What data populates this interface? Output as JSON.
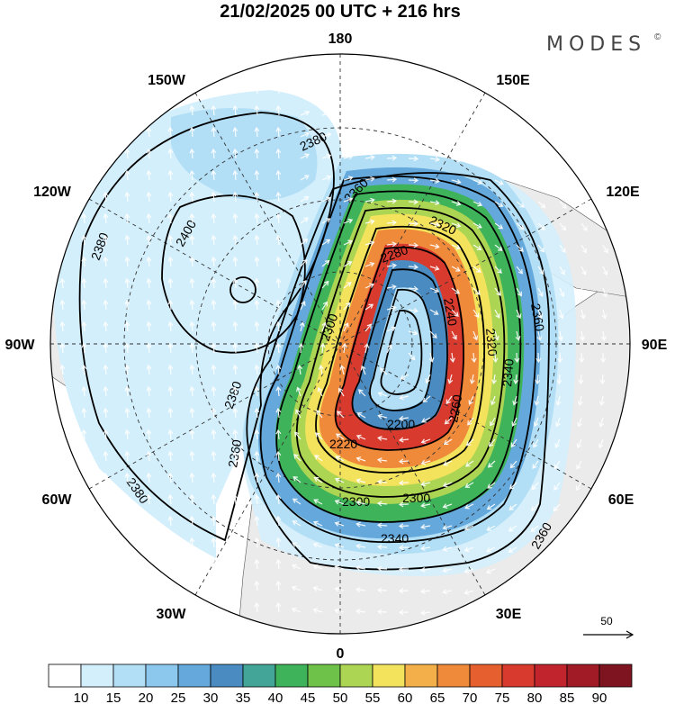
{
  "title": "21/02/2025  00 UTC  + 216 hrs",
  "brand": "MODES",
  "brand_mark": "©",
  "longitude_labels": {
    "top": "180",
    "upper_left": "150W",
    "upper_right": "150E",
    "left_upper": "120W",
    "right_upper": "120E",
    "left": "90W",
    "right": "90E",
    "left_lower": "60W",
    "right_lower": "60E",
    "lower_left": "30W",
    "lower_right": "30E",
    "bottom": "0"
  },
  "contour_labels": [
    "2380",
    "2400",
    "2380",
    "2380",
    "2380",
    "2360",
    "2320",
    "2280",
    "2240",
    "2300",
    "2200",
    "2220",
    "2260",
    "2300",
    "2300",
    "2340",
    "2360",
    "2360",
    "2340",
    "2320",
    "2360"
  ],
  "reference_vector": {
    "value": "50"
  },
  "colorbar": {
    "labels": [
      "10",
      "15",
      "20",
      "25",
      "30",
      "35",
      "40",
      "45",
      "50",
      "55",
      "60",
      "65",
      "70",
      "75",
      "80",
      "85",
      "90"
    ],
    "colors": [
      "#ffffff",
      "#d4effc",
      "#b2dff6",
      "#8cc8ee",
      "#64a8dc",
      "#4a8cc2",
      "#43a597",
      "#3fb35a",
      "#6ec24a",
      "#acd553",
      "#f2e25c",
      "#f3b04a",
      "#f08a3b",
      "#e65f2e",
      "#d83a2e",
      "#c2242e",
      "#a11b26",
      "#7e1420"
    ]
  },
  "colors": {
    "land": "#ebebeb",
    "ocean": "#ffffff",
    "contour": "#000000",
    "arrow": "#ffffff"
  }
}
